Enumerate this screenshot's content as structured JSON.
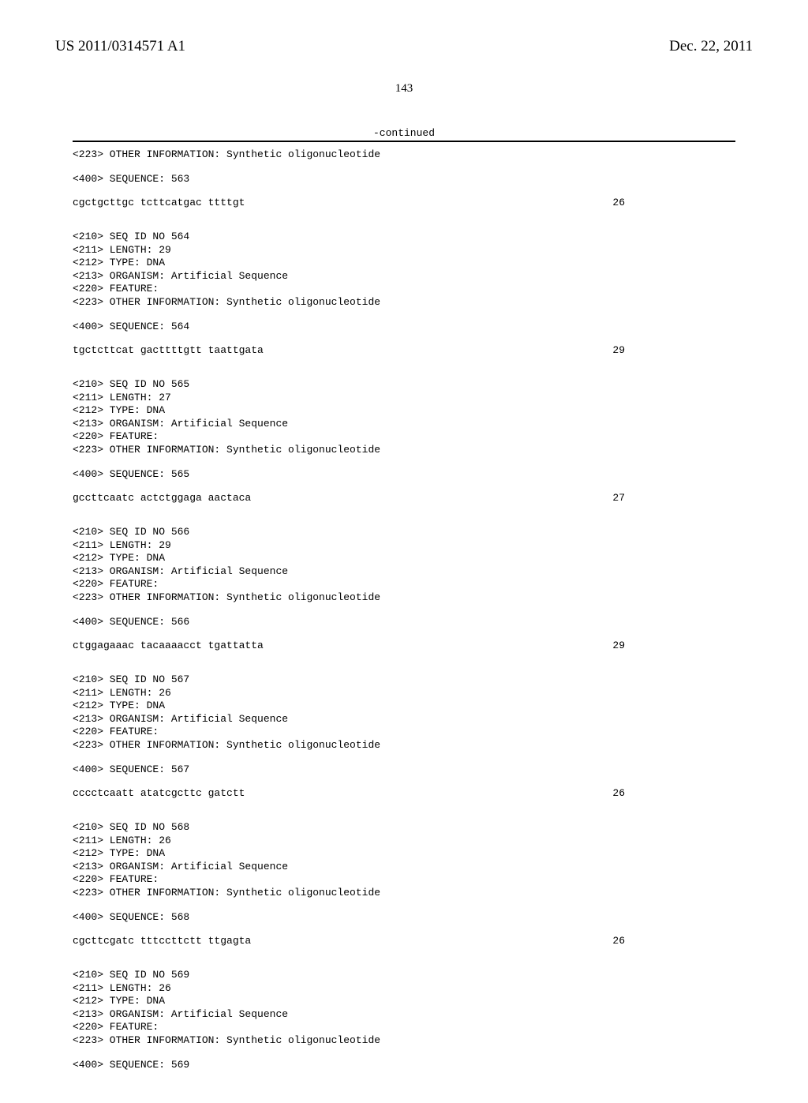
{
  "header": {
    "pub_number": "US 2011/0314571 A1",
    "pub_date": "Dec. 22, 2011"
  },
  "page_number": "143",
  "continued_label": "-continued",
  "entries": [
    {
      "pre_lines": [
        "<223> OTHER INFORMATION: Synthetic oligonucleotide"
      ],
      "seq_label": "<400> SEQUENCE: 563",
      "sequence": "cgctgcttgc tcttcatgac ttttgt",
      "length": "26"
    },
    {
      "pre_lines": [
        "<210> SEQ ID NO 564",
        "<211> LENGTH: 29",
        "<212> TYPE: DNA",
        "<213> ORGANISM: Artificial Sequence",
        "<220> FEATURE:",
        "<223> OTHER INFORMATION: Synthetic oligonucleotide"
      ],
      "seq_label": "<400> SEQUENCE: 564",
      "sequence": "tgctcttcat gacttttgtt taattgata",
      "length": "29"
    },
    {
      "pre_lines": [
        "<210> SEQ ID NO 565",
        "<211> LENGTH: 27",
        "<212> TYPE: DNA",
        "<213> ORGANISM: Artificial Sequence",
        "<220> FEATURE:",
        "<223> OTHER INFORMATION: Synthetic oligonucleotide"
      ],
      "seq_label": "<400> SEQUENCE: 565",
      "sequence": "gccttcaatc actctggaga aactaca",
      "length": "27"
    },
    {
      "pre_lines": [
        "<210> SEQ ID NO 566",
        "<211> LENGTH: 29",
        "<212> TYPE: DNA",
        "<213> ORGANISM: Artificial Sequence",
        "<220> FEATURE:",
        "<223> OTHER INFORMATION: Synthetic oligonucleotide"
      ],
      "seq_label": "<400> SEQUENCE: 566",
      "sequence": "ctggagaaac tacaaaacct tgattatta",
      "length": "29"
    },
    {
      "pre_lines": [
        "<210> SEQ ID NO 567",
        "<211> LENGTH: 26",
        "<212> TYPE: DNA",
        "<213> ORGANISM: Artificial Sequence",
        "<220> FEATURE:",
        "<223> OTHER INFORMATION: Synthetic oligonucleotide"
      ],
      "seq_label": "<400> SEQUENCE: 567",
      "sequence": "cccctcaatt atatcgcttc gatctt",
      "length": "26"
    },
    {
      "pre_lines": [
        "<210> SEQ ID NO 568",
        "<211> LENGTH: 26",
        "<212> TYPE: DNA",
        "<213> ORGANISM: Artificial Sequence",
        "<220> FEATURE:",
        "<223> OTHER INFORMATION: Synthetic oligonucleotide"
      ],
      "seq_label": "<400> SEQUENCE: 568",
      "sequence": "cgcttcgatc tttccttctt ttgagta",
      "length": "26"
    },
    {
      "pre_lines": [
        "<210> SEQ ID NO 569",
        "<211> LENGTH: 26",
        "<212> TYPE: DNA",
        "<213> ORGANISM: Artificial Sequence",
        "<220> FEATURE:",
        "<223> OTHER INFORMATION: Synthetic oligonucleotide"
      ],
      "seq_label": "<400> SEQUENCE: 569",
      "sequence": "",
      "length": ""
    }
  ]
}
